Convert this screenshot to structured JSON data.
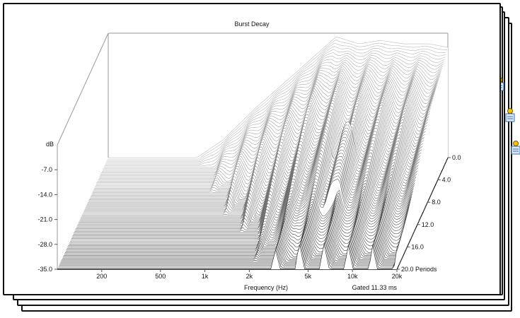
{
  "chart_data": {
    "type": "waterfall-3d",
    "title": "Burst Decay",
    "xlabel": "Frequency (Hz)",
    "x_scale": "log",
    "x_range": [
      100,
      20000
    ],
    "x_ticks": [
      "200",
      "500",
      "1k",
      "2k",
      "5k",
      "10k",
      "20k"
    ],
    "ylabel": "dB",
    "y_range": [
      -35.0,
      0.0
    ],
    "y_ticks": [
      "-7.0",
      "-14.0",
      "-21.0",
      "-28.0",
      "-35.0"
    ],
    "zlabel": "Periods",
    "z_range": [
      0.0,
      20.0
    ],
    "z_ticks": [
      "0.0",
      "4.0",
      "8.0",
      "12.0",
      "16.0",
      "20.0 Periods"
    ],
    "footer_note": "Gated 11.33 ms",
    "series": [
      {
        "x": [
          100,
          400,
          600,
          1000,
          2000,
          3500,
          5000,
          7000,
          10000,
          15000,
          20000
        ],
        "y": [
          -35,
          -35,
          -30,
          -21,
          -10,
          -1,
          -3,
          -2,
          -3,
          -3,
          -4
        ]
      }
    ]
  },
  "stack_tabs": [
    {
      "icon": "document-icon"
    },
    {
      "icon": "document-icon"
    },
    {
      "icon": "document-gear-icon"
    },
    {
      "icon": "document-gear-icon"
    },
    {
      "icon": "document-gear-icon"
    }
  ]
}
